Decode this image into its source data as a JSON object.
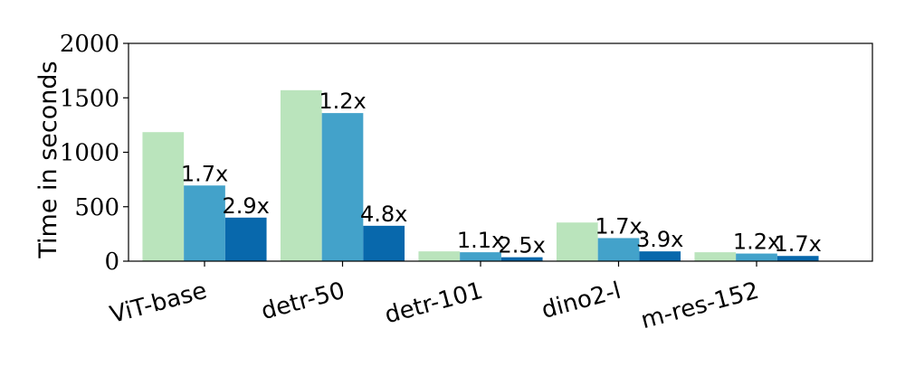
{
  "chart_data": {
    "type": "bar",
    "categories": [
      "ViT-base",
      "detr-50",
      "detr-101",
      "dino2-l",
      "m-res-152"
    ],
    "series": [
      {
        "values": [
          1185,
          1570,
          90,
          355,
          82
        ],
        "color": "#bae4bc",
        "labels": [
          "",
          "",
          "",
          "",
          ""
        ]
      },
      {
        "values": [
          695,
          1360,
          82,
          212,
          70
        ],
        "color": "#43a2ca",
        "labels": [
          "1.7x",
          "1.2x",
          "1.1x",
          "1.7x",
          "1.2x"
        ]
      },
      {
        "values": [
          400,
          325,
          36,
          90,
          48
        ],
        "color": "#0868ac",
        "labels": [
          "2.9x",
          "4.8x",
          "2.5x",
          "3.9x",
          "1.7x"
        ]
      }
    ],
    "ylabel": "Time in seconds",
    "ylim": [
      0,
      2000
    ],
    "yticks": [
      0,
      500,
      1000,
      1500,
      2000
    ],
    "grid": false
  }
}
